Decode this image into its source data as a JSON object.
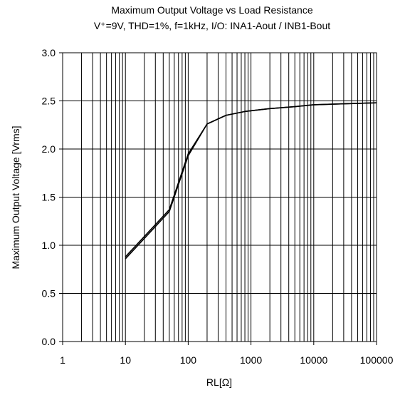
{
  "chart_data": {
    "type": "line",
    "title": "Maximum Output Voltage vs Load Resistance",
    "subtitle": "V⁺=9V, THD=1%, f=1kHz, I/O: INA1-Aout / INB1-Bout",
    "xlabel": "RL[Ω]",
    "ylabel": "Maximum Output Voltage [Vrms]",
    "x_scale": "log",
    "xlim": [
      1,
      100000
    ],
    "ylim": [
      0,
      3.0
    ],
    "grid": true,
    "x_ticks": [
      1,
      10,
      100,
      1000,
      10000,
      100000
    ],
    "x_tick_labels": [
      "1",
      "10",
      "100",
      "1000",
      "10000",
      "100000"
    ],
    "y_ticks": [
      0,
      0.5,
      1.0,
      1.5,
      2.0,
      2.5,
      3.0
    ],
    "y_tick_labels": [
      "0.0",
      "0.5",
      "1.0",
      "1.5",
      "2.0",
      "2.5",
      "3.0"
    ],
    "series": [
      {
        "name": "",
        "x": [
          10,
          50,
          100,
          200,
          400,
          800,
          2000,
          5000,
          10000,
          30000,
          100000
        ],
        "y": [
          0.88,
          1.37,
          1.95,
          2.26,
          2.35,
          2.39,
          2.42,
          2.44,
          2.46,
          2.47,
          2.48
        ]
      },
      {
        "name": "",
        "x": [
          10,
          50,
          100,
          200,
          400,
          800,
          2000,
          5000,
          10000,
          30000,
          100000
        ],
        "y": [
          0.86,
          1.35,
          1.93,
          2.26,
          2.35,
          2.39,
          2.42,
          2.44,
          2.46,
          2.47,
          2.48
        ]
      }
    ]
  }
}
